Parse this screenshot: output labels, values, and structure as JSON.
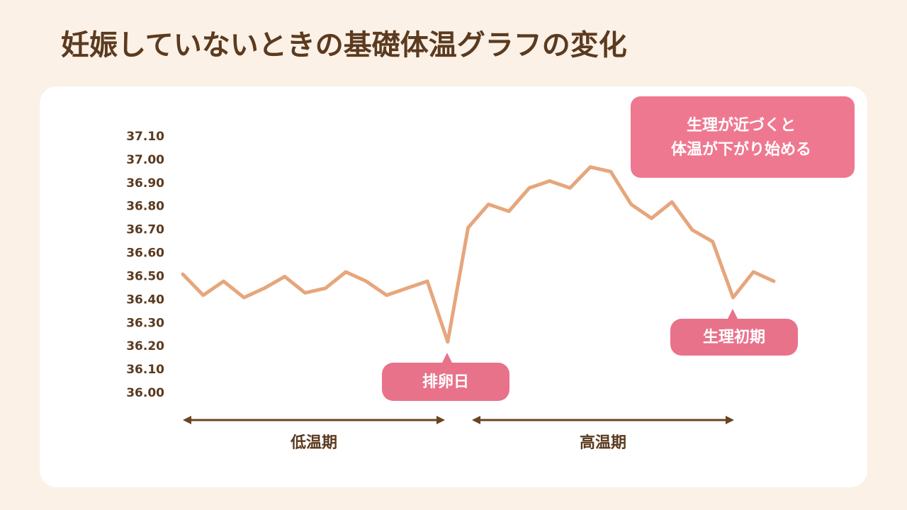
{
  "chart_data": {
    "type": "line",
    "title": "妊娠していないときの基礎体温グラフの変化",
    "categories": [
      null,
      null,
      null,
      null,
      null,
      null,
      null,
      null,
      null,
      null,
      null,
      null,
      null,
      null,
      null,
      null,
      null,
      null,
      null,
      null,
      null,
      null,
      null,
      null,
      null,
      null,
      null,
      null,
      null,
      null
    ],
    "values": [
      36.51,
      36.42,
      36.48,
      36.41,
      36.45,
      36.5,
      36.43,
      36.45,
      36.52,
      36.48,
      36.42,
      36.45,
      36.48,
      36.22,
      36.71,
      36.81,
      36.78,
      36.88,
      36.91,
      36.88,
      36.97,
      36.95,
      36.81,
      36.75,
      36.82,
      36.7,
      36.65,
      36.41,
      36.52,
      36.48
    ],
    "color": "#e6a67c",
    "ylim": [
      36.0,
      37.1
    ],
    "yticks": [
      {
        "value": 36.0,
        "label": "36.00"
      },
      {
        "value": 36.1,
        "label": "36.10"
      },
      {
        "value": 36.2,
        "label": "36.20"
      },
      {
        "value": 36.3,
        "label": "36.30"
      },
      {
        "value": 36.4,
        "label": "36.40"
      },
      {
        "value": 36.5,
        "label": "36.50"
      },
      {
        "value": 36.6,
        "label": "36.60"
      },
      {
        "value": 36.7,
        "label": "36.70"
      },
      {
        "value": 36.8,
        "label": "36.80"
      },
      {
        "value": 36.9,
        "label": "36.90"
      },
      {
        "value": 37.0,
        "label": "37.00"
      },
      {
        "value": 37.1,
        "label": "37.10"
      }
    ],
    "grid": false,
    "annotations": {
      "ovulation": "排卵日",
      "menstruation": "生理初期",
      "note": [
        "生理が近づくと",
        "体温が下がり始める"
      ],
      "low_phase": "低温期",
      "high_phase": "高温期"
    }
  }
}
